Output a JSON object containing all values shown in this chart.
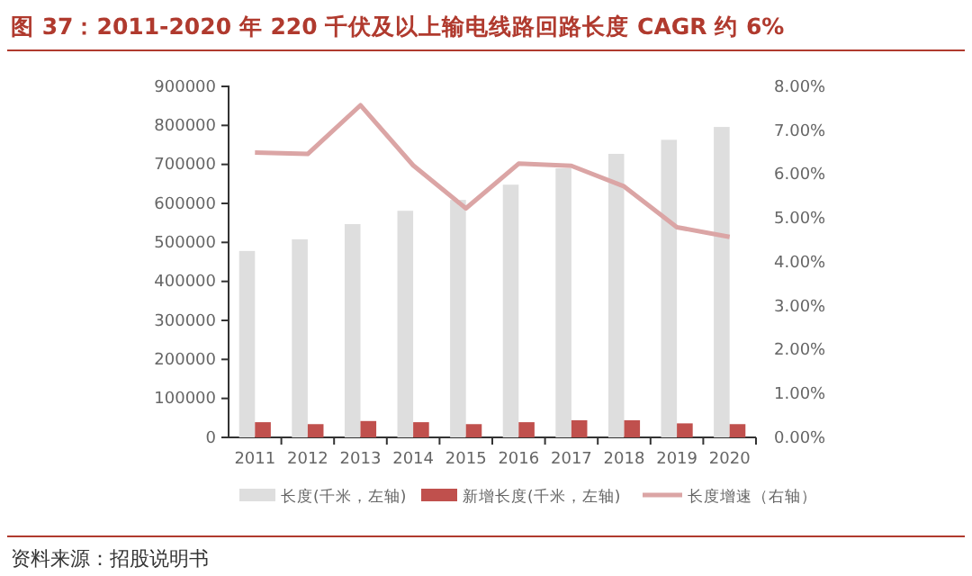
{
  "chart_data": {
    "type": "bar",
    "title": "图 37：2011-2020 年 220 千伏及以上输电线路回路长度 CAGR 约 6%",
    "categories": [
      "2011",
      "2012",
      "2013",
      "2014",
      "2015",
      "2016",
      "2017",
      "2018",
      "2019",
      "2020"
    ],
    "series": [
      {
        "name": "长度(千米，左轴)",
        "color": "#dedede",
        "values": [
          478000,
          508000,
          547000,
          581000,
          609000,
          648000,
          690000,
          727000,
          763000,
          796000
        ]
      },
      {
        "name": "新增长度(千米，左轴)",
        "color": "#c0504d",
        "values": [
          39000,
          34000,
          42000,
          39000,
          34000,
          39000,
          44000,
          44000,
          36000,
          34000
        ]
      },
      {
        "name": "长度增速（右轴）",
        "type": "line",
        "axis": "y2",
        "color": "#dba5a5",
        "values": [
          6.49,
          6.46,
          7.57,
          6.2,
          5.22,
          6.24,
          6.19,
          5.72,
          4.79,
          4.57
        ]
      }
    ],
    "ylim": [
      0,
      900000
    ],
    "yticks": [
      0,
      100000,
      200000,
      300000,
      400000,
      500000,
      600000,
      700000,
      800000,
      900000
    ],
    "y2lim": [
      0,
      8
    ],
    "y2ticks": [
      {
        "value": 0,
        "label": "0.00%"
      },
      {
        "value": 1,
        "label": "1.00%"
      },
      {
        "value": 2,
        "label": "2.00%"
      },
      {
        "value": 3,
        "label": "3.00%"
      },
      {
        "value": 4,
        "label": "4.00%"
      },
      {
        "value": 5,
        "label": "5.00%"
      },
      {
        "value": 6,
        "label": "6.00%"
      },
      {
        "value": 7,
        "label": "7.00%"
      },
      {
        "value": 8,
        "label": "8.00%"
      }
    ],
    "legend": "bottom",
    "grid": false,
    "marker": "none",
    "line_style": "solid",
    "annotations": [
      "资料来源：招股说明书"
    ]
  }
}
